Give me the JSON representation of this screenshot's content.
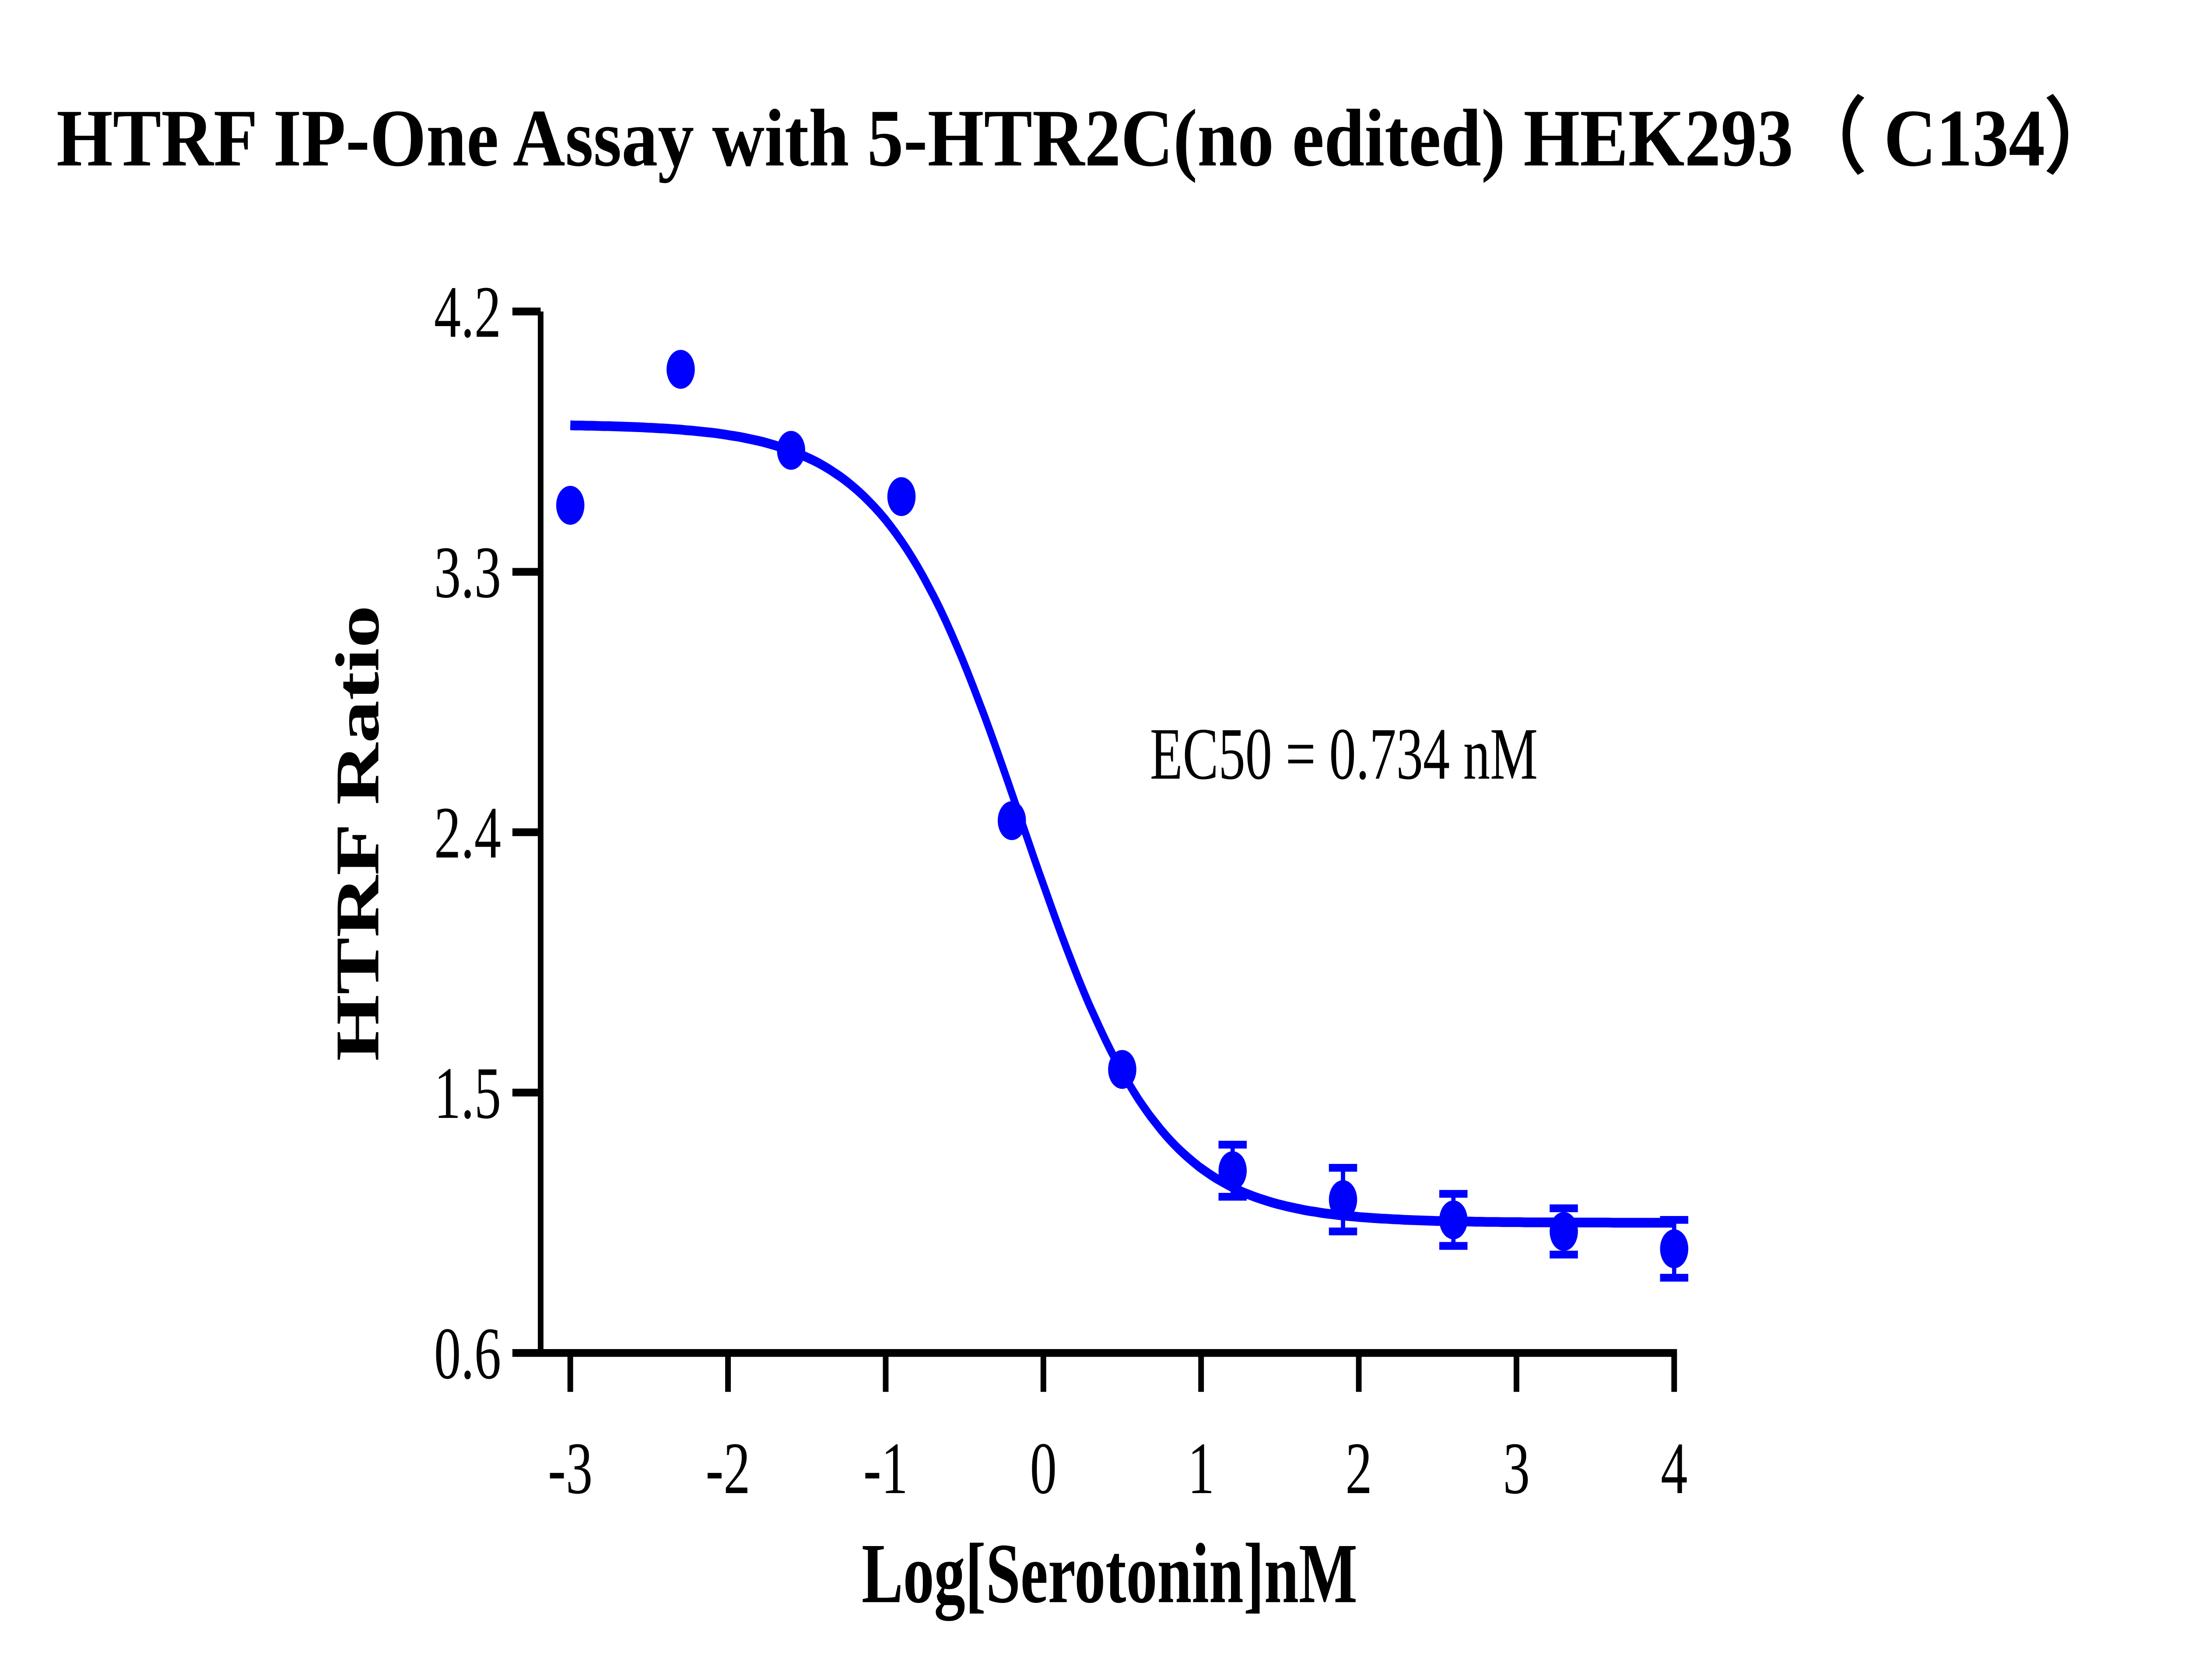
{
  "chart_data": {
    "type": "scatter",
    "title": "HTRF IP-One Assay with 5-HTR2C(no edited) HEK293（ C134）",
    "xlabel": "Log[Serotonin]nM",
    "ylabel": "HTRF Ratio",
    "xlim": [
      -3,
      4
    ],
    "ylim": [
      0.6,
      4.2
    ],
    "xticks": [
      "-3",
      "-2",
      "-1",
      "0",
      "1",
      "2",
      "3",
      "4"
    ],
    "yticks": [
      "0.6",
      "1.5",
      "2.4",
      "3.3",
      "4.2"
    ],
    "grid": false,
    "color": "#0000FF",
    "annotation": "EC50 = 0.734 nM",
    "series": [
      {
        "x": [
          -3.0,
          -2.3,
          -1.6,
          -0.9,
          -0.2,
          0.5,
          1.2,
          1.9,
          2.6,
          3.3,
          4.0
        ],
        "y": [
          3.53,
          4.0,
          3.72,
          3.56,
          2.44,
          1.58,
          1.23,
          1.13,
          1.06,
          1.02,
          0.96
        ],
        "error": [
          0,
          0,
          0,
          0,
          0,
          0,
          0.09,
          0.11,
          0.09,
          0.08,
          0.1
        ]
      }
    ],
    "fit": {
      "model": "four-parameter logistic",
      "top": 3.81,
      "bottom": 1.05,
      "logEC50": -0.134,
      "hill": 1.0
    }
  }
}
